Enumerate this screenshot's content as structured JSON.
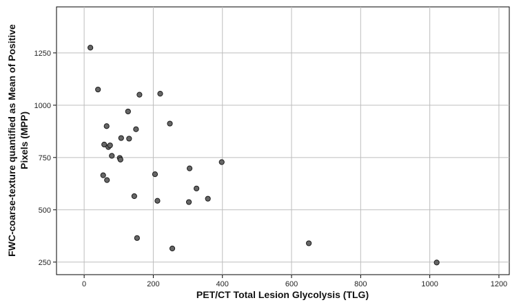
{
  "chart_data": {
    "type": "scatter",
    "title": "",
    "xlabel": "PET/CT Total Lesion Glycolysis (TLG)",
    "ylabel_lines": [
      "FWC-coarse-texture quantified as Mean of Positive",
      "Pixels (MPP)"
    ],
    "xlim": [
      -80,
      1230
    ],
    "ylim": [
      190,
      1470
    ],
    "xticks": [
      0,
      200,
      400,
      600,
      800,
      1000,
      1200
    ],
    "yticks": [
      250,
      500,
      750,
      1000,
      1250
    ],
    "xtick_labels": [
      "0",
      "200",
      "400",
      "600",
      "800",
      "1000",
      "1200"
    ],
    "ytick_labels": [
      "250",
      "500",
      "750",
      "1000",
      "1250"
    ],
    "grid": true,
    "marker_color": "#666666",
    "points": [
      {
        "x": 18,
        "y": 1275
      },
      {
        "x": 40,
        "y": 1075
      },
      {
        "x": 55,
        "y": 665
      },
      {
        "x": 58,
        "y": 812
      },
      {
        "x": 65,
        "y": 900
      },
      {
        "x": 66,
        "y": 642
      },
      {
        "x": 70,
        "y": 800
      },
      {
        "x": 75,
        "y": 808
      },
      {
        "x": 80,
        "y": 758
      },
      {
        "x": 103,
        "y": 748
      },
      {
        "x": 105,
        "y": 740
      },
      {
        "x": 107,
        "y": 843
      },
      {
        "x": 127,
        "y": 970
      },
      {
        "x": 130,
        "y": 840
      },
      {
        "x": 145,
        "y": 565
      },
      {
        "x": 150,
        "y": 885
      },
      {
        "x": 153,
        "y": 365
      },
      {
        "x": 160,
        "y": 1050
      },
      {
        "x": 205,
        "y": 670
      },
      {
        "x": 212,
        "y": 543
      },
      {
        "x": 220,
        "y": 1055
      },
      {
        "x": 248,
        "y": 912
      },
      {
        "x": 255,
        "y": 315
      },
      {
        "x": 303,
        "y": 537
      },
      {
        "x": 305,
        "y": 698
      },
      {
        "x": 325,
        "y": 602
      },
      {
        "x": 358,
        "y": 553
      },
      {
        "x": 398,
        "y": 728
      },
      {
        "x": 650,
        "y": 340
      },
      {
        "x": 1020,
        "y": 248
      }
    ]
  }
}
